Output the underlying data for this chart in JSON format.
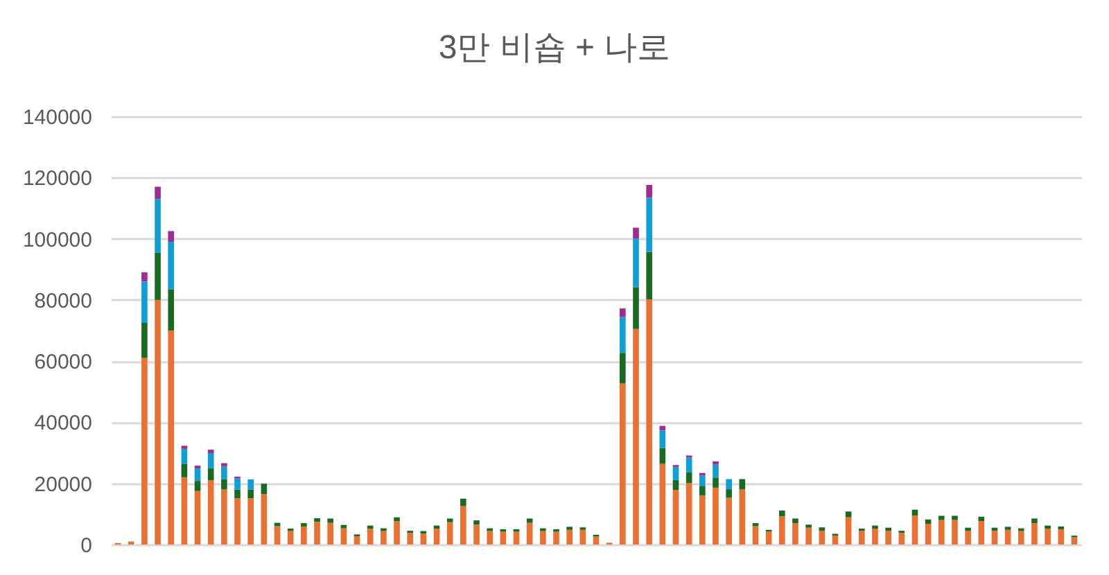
{
  "chart_data": {
    "type": "bar",
    "title": "3만 비숍 + 나로",
    "stacked": true,
    "grid": "y",
    "tick_labels": "y",
    "categories": [
      null,
      null,
      null,
      null,
      null,
      null,
      null,
      null,
      null,
      null,
      null,
      null,
      null,
      null,
      null,
      null,
      null,
      null,
      null,
      null,
      null,
      null,
      null,
      null,
      null,
      null,
      null,
      null,
      null,
      null,
      null,
      null,
      null,
      null,
      null,
      null,
      null,
      null,
      null,
      null,
      null,
      null,
      null,
      null,
      null,
      null,
      null,
      null,
      null,
      null,
      null,
      null,
      null,
      null,
      null,
      null,
      null,
      null,
      null,
      null,
      null,
      null,
      null,
      null,
      null,
      null,
      null,
      null,
      null,
      null,
      null,
      null,
      null
    ],
    "ylim": [
      0,
      140000
    ],
    "yticks": [
      0,
      20000,
      40000,
      60000,
      80000,
      100000,
      120000,
      140000
    ],
    "series": [
      {
        "color": "#e97132",
        "values": [
          500,
          1000,
          61000,
          80000,
          70000,
          22000,
          17500,
          21000,
          18000,
          15100,
          15100,
          16500,
          6000,
          4400,
          5900,
          7400,
          7100,
          5300,
          2700,
          5200,
          4400,
          7600,
          3800,
          3600,
          5200,
          7300,
          12600,
          6500,
          4400,
          4200,
          4200,
          7100,
          4400,
          4200,
          4800,
          4800,
          2600,
          600,
          52700,
          70500,
          80200,
          26400,
          17800,
          20100,
          16000,
          18600,
          15300,
          18000,
          6000,
          4200,
          9200,
          7000,
          5500,
          4500,
          2900,
          8900,
          4500,
          5200,
          4500,
          3800,
          9500,
          6800,
          8000,
          8000,
          4500,
          7700,
          4500,
          4800,
          4400,
          7000,
          5200,
          5000,
          2400
        ]
      },
      {
        "color": "#196b24",
        "values": [
          null,
          null,
          11500,
          15500,
          13500,
          4300,
          3300,
          3900,
          3400,
          2900,
          2900,
          3400,
          1100,
          800,
          1100,
          1200,
          1400,
          1100,
          600,
          1000,
          900,
          1300,
          700,
          800,
          1000,
          1200,
          2400,
          1400,
          900,
          800,
          800,
          1400,
          900,
          800,
          1000,
          800,
          600,
          null,
          10000,
          13600,
          15500,
          5200,
          3300,
          3600,
          3200,
          3300,
          2800,
          3400,
          1000,
          600,
          1900,
          1500,
          1000,
          1100,
          600,
          1900,
          700,
          1000,
          1000,
          700,
          1900,
          1400,
          1400,
          1400,
          1000,
          1400,
          1000,
          1000,
          900,
          1500,
          1000,
          900,
          500
        ]
      },
      {
        "color": "#0f9ed5",
        "values": [
          null,
          null,
          13500,
          17500,
          15500,
          5000,
          4100,
          5000,
          4100,
          3600,
          3300,
          null,
          null,
          null,
          null,
          null,
          null,
          null,
          null,
          null,
          null,
          null,
          null,
          null,
          null,
          null,
          null,
          null,
          null,
          null,
          null,
          null,
          null,
          null,
          null,
          null,
          null,
          null,
          11700,
          15900,
          17700,
          5700,
          4300,
          4700,
          3400,
          4200,
          3300,
          null,
          null,
          null,
          null,
          null,
          null,
          null,
          null,
          null,
          null,
          null,
          null,
          null,
          null,
          null,
          null,
          null,
          null,
          null,
          null,
          null,
          null,
          null,
          null,
          null,
          null
        ]
      },
      {
        "color": "#a02b93",
        "values": [
          null,
          null,
          3000,
          4000,
          3500,
          1000,
          900,
          1100,
          1100,
          600,
          null,
          null,
          null,
          null,
          null,
          null,
          null,
          null,
          null,
          null,
          null,
          null,
          null,
          null,
          null,
          null,
          null,
          null,
          null,
          null,
          null,
          null,
          null,
          null,
          null,
          null,
          null,
          null,
          2800,
          3600,
          4200,
          1500,
          600,
          700,
          800,
          1100,
          null,
          null,
          null,
          null,
          null,
          null,
          null,
          null,
          null,
          null,
          null,
          null,
          null,
          null,
          null,
          null,
          null,
          null,
          null,
          null,
          null,
          null,
          null,
          null,
          null,
          null,
          null
        ]
      }
    ]
  }
}
